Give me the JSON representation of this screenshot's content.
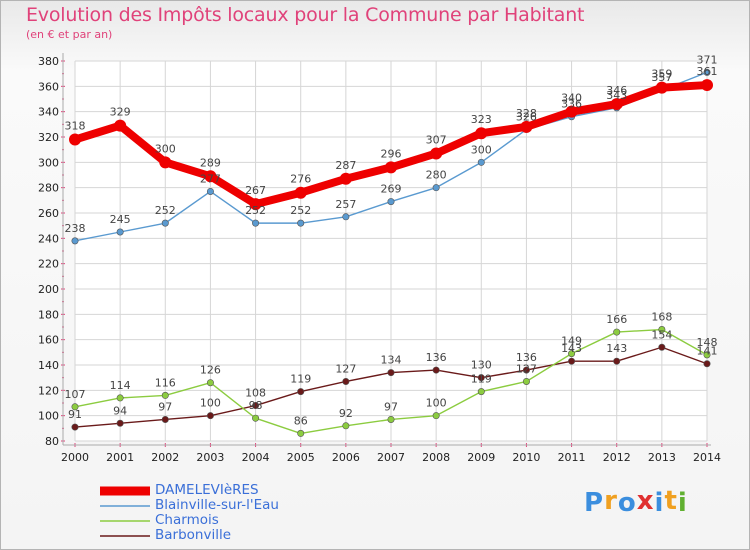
{
  "header": {
    "title": "Evolution des Impôts locaux pour la Commune par Habitant",
    "subtitle": "(en € et par an)"
  },
  "brand": {
    "name": "Proxiti",
    "letter_colors": [
      "#3b8ede",
      "#f0a020",
      "#3b8ede",
      "#e03030",
      "#3b8ede",
      "#f0a020",
      "#60b030"
    ]
  },
  "chart_data": {
    "type": "line",
    "title": "Evolution des Impôts locaux pour la Commune par Habitant",
    "subtitle": "(en € et par an)",
    "xlabel": "",
    "ylabel": "",
    "x": [
      "2000",
      "2001",
      "2002",
      "2003",
      "2004",
      "2005",
      "2006",
      "2007",
      "2008",
      "2009",
      "2010",
      "2011",
      "2012",
      "2013",
      "2014"
    ],
    "ylim": [
      80,
      380
    ],
    "yticks": [
      80,
      100,
      120,
      140,
      160,
      180,
      200,
      220,
      240,
      260,
      280,
      300,
      320,
      340,
      360,
      380
    ],
    "grid": true,
    "legend_position": "bottom-left",
    "series": [
      {
        "name": "DAMELEVIèRES",
        "color": "#ee0000",
        "values": [
          318,
          329,
          300,
          289,
          267,
          276,
          287,
          296,
          307,
          323,
          328,
          340,
          346,
          359,
          361
        ]
      },
      {
        "name": "Blainville-sur-l'Eau",
        "color": "#5a9ad0",
        "values": [
          238,
          245,
          252,
          277,
          252,
          252,
          257,
          269,
          280,
          300,
          326,
          336,
          343,
          357,
          371
        ]
      },
      {
        "name": "Charmois",
        "color": "#8ccc40",
        "values": [
          107,
          114,
          116,
          126,
          98,
          86,
          92,
          97,
          100,
          119,
          127,
          149,
          166,
          168,
          148
        ]
      },
      {
        "name": "Barbonville",
        "color": "#6a1a1a",
        "values": [
          91,
          94,
          97,
          100,
          108,
          119,
          127,
          134,
          136,
          130,
          136,
          143,
          143,
          154,
          141
        ]
      }
    ],
    "data_labels": [
      [
        "318",
        "329",
        "300",
        "289",
        "267",
        "276",
        "287",
        "296",
        "307",
        "323",
        "328",
        "340",
        "346",
        "359",
        "361"
      ],
      [
        "238",
        "245",
        "252",
        "277",
        "252",
        "252",
        "257",
        "269",
        "280",
        "300",
        "326",
        "336",
        "343",
        "357",
        "371"
      ],
      [
        "107",
        "114",
        "116",
        "126",
        "98",
        "86",
        "92",
        "97",
        "100",
        "119",
        "127",
        "149",
        "166",
        "168",
        "148"
      ],
      [
        "91",
        "94",
        "97",
        "100",
        "108",
        "119",
        "127",
        "134",
        "136",
        "130",
        "136",
        "143",
        "143",
        "154",
        "141"
      ]
    ]
  }
}
